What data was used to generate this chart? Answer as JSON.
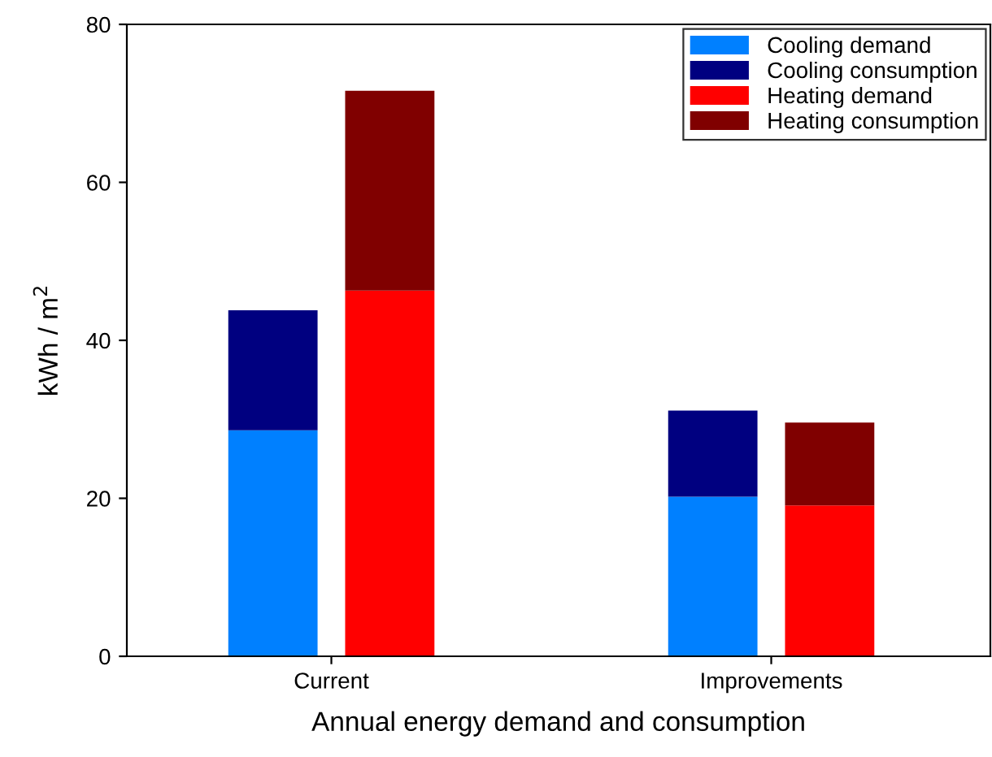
{
  "chart_data": {
    "type": "bar",
    "xlabel": "Annual energy demand and consumption",
    "ylabel": "kWh / m$^{2}$",
    "stacked": true,
    "categories": [
      null,
      null,
      null,
      null
    ],
    "annotations": [
      "Current",
      "Improvements"
    ],
    "series": [
      {
        "name": "Cooling demand",
        "color": "#0080ff",
        "values": [
          28.6,
          null,
          20.2,
          null
        ]
      },
      {
        "name": "Cooling consumption",
        "color": "#000080",
        "values": [
          15.2,
          null,
          10.9,
          null
        ]
      },
      {
        "name": "Heating demand",
        "color": "#ff0000",
        "values": [
          null,
          46.3,
          null,
          19.1
        ]
      },
      {
        "name": "Heating consumption",
        "color": "#800000",
        "values": [
          null,
          25.3,
          null,
          10.5
        ]
      }
    ],
    "ylim": [
      0,
      80
    ],
    "yticks": [
      0,
      20,
      40,
      60,
      80
    ],
    "grid": false,
    "legend": "top right"
  }
}
